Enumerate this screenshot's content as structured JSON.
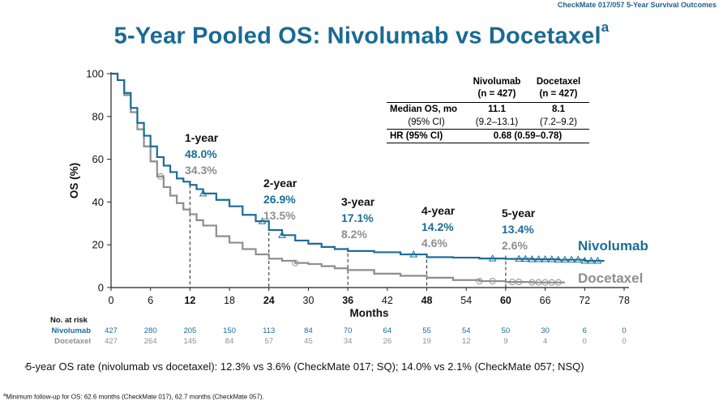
{
  "header_tag": "CheckMate 017/057 5-Year Survival Outcomes",
  "title": "5-Year Pooled OS: Nivolumab vs Docetaxel",
  "title_superscript": "a",
  "table": {
    "col1_name": "Nivolumab",
    "col1_n": "(n = 427)",
    "col2_name": "Docetaxel",
    "col2_n": "(n = 427)",
    "row1_label": "Median OS, mo",
    "row1_nivo": "11.1",
    "row1_doce": "8.1",
    "row2_label": "(95% CI)",
    "row2_nivo": "(9.2–13.1)",
    "row2_doce": "(7.2–9.2)",
    "row3_label": "HR (95% CI)",
    "row3_value": "0.68 (0.59–0.78)"
  },
  "bullet": "5-year OS rate (nivolumab vs docetaxel): 12.3% vs 3.6% (CheckMate 017; SQ); 14.0% vs 2.1% (CheckMate 057; NSQ)",
  "footnote_mark": "a",
  "footnote": "Minimum follow-up for OS: 62.6 months (CheckMate 017), 62.7 months (CheckMate 057).",
  "colors": {
    "nivolumab": "#1b6d98",
    "docetaxel": "#8e8e8e",
    "title": "#1a6a93"
  },
  "chart_data": {
    "type": "line",
    "title": "5-Year Pooled OS: Nivolumab vs Docetaxel",
    "xlabel": "Months",
    "ylabel": "OS (%)",
    "xlim": [
      0,
      78
    ],
    "ylim": [
      0,
      100
    ],
    "x_ticks": [
      0,
      6,
      12,
      18,
      24,
      30,
      36,
      42,
      48,
      54,
      60,
      66,
      72,
      78
    ],
    "y_ticks": [
      0,
      20,
      40,
      60,
      80,
      100
    ],
    "series": [
      {
        "name": "Nivolumab",
        "x": [
          0,
          1,
          2,
          3,
          4,
          5,
          6,
          7,
          8,
          9,
          10,
          11,
          12,
          13,
          14,
          16,
          18,
          20,
          22,
          24,
          26,
          28,
          30,
          32,
          34,
          36,
          40,
          44,
          48,
          52,
          56,
          60,
          64,
          68,
          72,
          75
        ],
        "y": [
          100,
          97,
          91,
          84,
          77,
          71,
          66,
          61,
          57,
          54,
          51,
          49.5,
          48,
          46,
          44,
          41,
          38,
          34,
          31,
          26.9,
          24.5,
          22,
          20.5,
          19,
          18,
          17.1,
          16.5,
          15.5,
          14.2,
          14,
          13.6,
          13.4,
          13.2,
          13,
          12.5,
          12.5
        ],
        "censor_x": [
          14,
          23,
          26,
          46,
          58,
          62,
          63,
          64,
          65,
          66,
          67,
          68,
          69,
          70,
          71,
          72,
          73,
          74
        ],
        "end_label": "Nivolumab"
      },
      {
        "name": "Docetaxel",
        "x": [
          0,
          1,
          2,
          3,
          4,
          5,
          6,
          7,
          8,
          9,
          10,
          11,
          12,
          13,
          14,
          16,
          18,
          20,
          22,
          24,
          26,
          28,
          30,
          32,
          34,
          36,
          40,
          44,
          48,
          52,
          56,
          60,
          64,
          68,
          69
        ],
        "y": [
          100,
          97,
          90,
          82,
          74,
          66,
          59,
          52,
          47,
          43,
          39.5,
          36.5,
          34.3,
          31.5,
          29,
          24,
          21,
          18,
          15.5,
          13.5,
          12.5,
          11.5,
          11,
          10,
          9,
          8.2,
          6.5,
          5.5,
          4.6,
          3.5,
          3,
          2.6,
          2.4,
          2.4,
          2.4
        ],
        "censor_x": [
          7.5,
          28,
          56,
          58,
          61,
          62,
          64,
          65,
          66,
          67,
          68
        ],
        "end_label": "Docetaxel"
      }
    ],
    "annotations": [
      {
        "month": 12,
        "label": "1-year",
        "nivolumab": "48.0%",
        "docetaxel": "34.3%"
      },
      {
        "month": 24,
        "label": "2-year",
        "nivolumab": "26.9%",
        "docetaxel": "13.5%"
      },
      {
        "month": 36,
        "label": "3-year",
        "nivolumab": "17.1%",
        "docetaxel": "8.2%"
      },
      {
        "month": 48,
        "label": "4-year",
        "nivolumab": "14.2%",
        "docetaxel": "4.6%"
      },
      {
        "month": 60,
        "label": "5-year",
        "nivolumab": "13.4%",
        "docetaxel": "2.6%"
      }
    ],
    "at_risk": {
      "title": "No. at risk",
      "rows": [
        {
          "name": "Nivolumab",
          "values": [
            "427",
            "280",
            "205",
            "150",
            "113",
            "84",
            "70",
            "64",
            "55",
            "54",
            "50",
            "30",
            "6",
            "0"
          ]
        },
        {
          "name": "Docetaxel",
          "values": [
            "427",
            "264",
            "145",
            "84",
            "57",
            "45",
            "34",
            "26",
            "19",
            "12",
            "9",
            "4",
            "0",
            "0"
          ]
        }
      ]
    }
  }
}
